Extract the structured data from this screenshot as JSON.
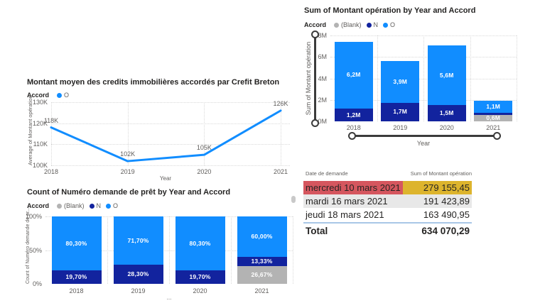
{
  "colors": {
    "accent_blue": "#118DFF",
    "navy": "#12239E",
    "blank_gray": "#B3B3B3",
    "table_red": "#D5565E",
    "table_yellow": "#DDB42D",
    "row_gray": "#E8E8E8",
    "total_divider_blue": "#A9C7E7",
    "slider_dark": "#3B3B3B"
  },
  "chart_data": [
    {
      "id": "sum-montant-by-year",
      "type": "bar",
      "stacked": true,
      "title": "Sum of Montant opération by Year and Accord",
      "legend_title": "Accord",
      "categories": [
        "2018",
        "2019",
        "2020",
        "2021"
      ],
      "series": [
        {
          "name": "(Blank)",
          "color": "#B3B3B3",
          "values": [
            0,
            0,
            0,
            0.6
          ],
          "labels": [
            "",
            "",
            "",
            "0,6M"
          ]
        },
        {
          "name": "N",
          "color": "#12239E",
          "values": [
            1.2,
            1.7,
            1.5,
            0.2
          ],
          "labels": [
            "1,2M",
            "1,7M",
            "1,5M",
            ""
          ]
        },
        {
          "name": "O",
          "color": "#118DFF",
          "values": [
            6.2,
            3.9,
            5.6,
            1.1
          ],
          "labels": [
            "6,2M",
            "3,9M",
            "5,6M",
            "1,1M"
          ]
        }
      ],
      "xlabel": "Year",
      "ylabel": "Sum of Montant opération",
      "ylim": [
        0,
        8
      ],
      "yticks": [
        {
          "value": 0,
          "label": "0M"
        },
        {
          "value": 2,
          "label": "2M"
        },
        {
          "value": 4,
          "label": "4M"
        },
        {
          "value": 6,
          "label": "6M"
        },
        {
          "value": 8,
          "label": "8M"
        }
      ],
      "grid": "dotted",
      "legend_position": "top",
      "has_axis_zoom_sliders": true
    },
    {
      "id": "montant-moyen-line",
      "type": "line",
      "title": "Montant moyen des credits immobilières accordés par Crefit Breton",
      "legend_title": "Accord",
      "series": [
        {
          "name": "O",
          "color": "#118DFF",
          "values": [
            118,
            102,
            105,
            126
          ],
          "labels": [
            "118K",
            "102K",
            "105K",
            "126K"
          ]
        }
      ],
      "x": [
        "2018",
        "2019",
        "2020",
        "2021"
      ],
      "xlabel": "Year",
      "ylabel": "Average of Montant opération",
      "ylim": [
        100,
        130
      ],
      "yticks": [
        {
          "value": 100,
          "label": "100K"
        },
        {
          "value": 110,
          "label": "110K"
        },
        {
          "value": 120,
          "label": "120K"
        },
        {
          "value": 130,
          "label": "130K"
        }
      ],
      "grid": "dotted",
      "legend_position": "top"
    },
    {
      "id": "count-numero-percent",
      "type": "bar",
      "stacked": true,
      "percent": true,
      "title": "Count of Numéro demande de prêt by Year and Accord",
      "legend_title": "Accord",
      "categories": [
        "2018",
        "2019",
        "2020",
        "2021"
      ],
      "series": [
        {
          "name": "(Blank)",
          "color": "#B3B3B3",
          "values": [
            0,
            0,
            0,
            26.67
          ],
          "labels": [
            "",
            "",
            "",
            "26,67%"
          ]
        },
        {
          "name": "N",
          "color": "#12239E",
          "values": [
            19.7,
            28.3,
            19.7,
            13.33
          ],
          "labels": [
            "19,70%",
            "28,30%",
            "19,70%",
            "13,33%"
          ]
        },
        {
          "name": "O",
          "color": "#118DFF",
          "values": [
            80.3,
            71.7,
            80.3,
            60.0
          ],
          "labels": [
            "80,30%",
            "71,70%",
            "80,30%",
            "60,00%"
          ]
        }
      ],
      "xlabel": "...",
      "ylabel": "Count of Numéro demande de pr...",
      "ylim": [
        0,
        100
      ],
      "yticks": [
        {
          "value": 0,
          "label": "0%"
        },
        {
          "value": 50,
          "label": "50%"
        },
        {
          "value": 100,
          "label": "100%"
        }
      ],
      "grid": "dotted",
      "legend_position": "top"
    }
  ],
  "table": {
    "columns": [
      "Date de demande",
      "Sum of Montant opération"
    ],
    "rows": [
      {
        "date": "mercredi 10 mars 2021",
        "value": "279 155,45",
        "date_bg": "#D5565E",
        "value_bg": "#DDB42D"
      },
      {
        "date": "mardi 16 mars 2021",
        "value": "191 423,89",
        "date_bg": "#E8E8E8",
        "value_bg": "#E8E8E8"
      },
      {
        "date": "jeudi 18 mars 2021",
        "value": "163 490,95",
        "date_bg": "#FFFFFF",
        "value_bg": "#FFFFFF"
      }
    ],
    "total_label": "Total",
    "total_value": "634 070,29"
  }
}
